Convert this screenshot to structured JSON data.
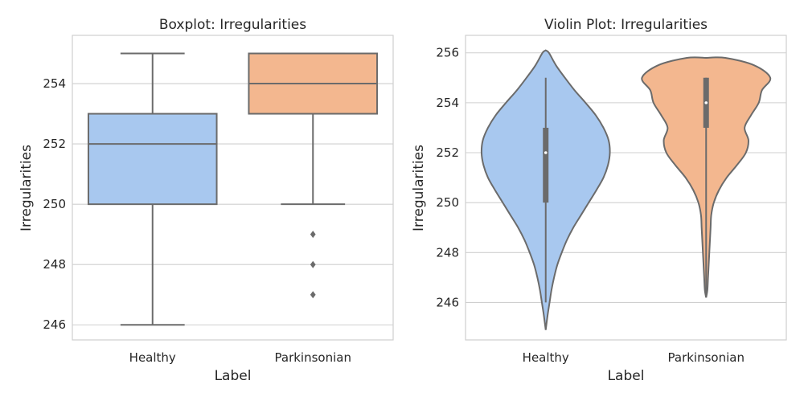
{
  "chart_data": [
    {
      "type": "box",
      "title": "Boxplot: Irregularities",
      "xlabel": "Label",
      "ylabel": "Irregularities",
      "categories": [
        "Healthy",
        "Parkinsonian"
      ],
      "ylim": [
        245.5,
        255.6
      ],
      "yticks": [
        246,
        248,
        250,
        252,
        254
      ],
      "grid": "horizontal",
      "boxes": [
        {
          "category": "Healthy",
          "color": "#a8c8ef",
          "whisker_low": 246,
          "q1": 250,
          "median": 252,
          "q3": 253,
          "whisker_high": 255,
          "outliers": []
        },
        {
          "category": "Parkinsonian",
          "color": "#f3b78f",
          "whisker_low": 250,
          "q1": 253,
          "median": 254,
          "q3": 255,
          "whisker_high": 255,
          "outliers": [
            249,
            248,
            247
          ]
        }
      ]
    },
    {
      "type": "violin",
      "title": "Violin Plot: Irregularities",
      "xlabel": "Label",
      "ylabel": "Irregularities",
      "categories": [
        "Healthy",
        "Parkinsonian"
      ],
      "ylim": [
        244.5,
        256.7
      ],
      "yticks": [
        246,
        248,
        250,
        252,
        254,
        256
      ],
      "grid": "horizontal",
      "violins": [
        {
          "category": "Healthy",
          "color": "#a8c8ef",
          "min": 246,
          "q1": 250,
          "median": 252,
          "q3": 253,
          "max": 255,
          "density": [
            [
              244.9,
              0.0
            ],
            [
              245.5,
              0.03
            ],
            [
              246.0,
              0.06
            ],
            [
              246.5,
              0.09
            ],
            [
              247.0,
              0.13
            ],
            [
              247.5,
              0.18
            ],
            [
              248.0,
              0.25
            ],
            [
              248.5,
              0.33
            ],
            [
              249.0,
              0.43
            ],
            [
              249.5,
              0.55
            ],
            [
              250.0,
              0.67
            ],
            [
              250.5,
              0.79
            ],
            [
              251.0,
              0.9
            ],
            [
              251.5,
              0.97
            ],
            [
              252.0,
              1.0
            ],
            [
              252.5,
              0.98
            ],
            [
              253.0,
              0.9
            ],
            [
              253.5,
              0.78
            ],
            [
              254.0,
              0.62
            ],
            [
              254.5,
              0.45
            ],
            [
              255.0,
              0.3
            ],
            [
              255.5,
              0.16
            ],
            [
              256.0,
              0.05
            ],
            [
              256.1,
              0.0
            ]
          ]
        },
        {
          "category": "Parkinsonian",
          "color": "#f3b78f",
          "min": 246.2,
          "q1": 253,
          "median": 254,
          "q3": 255,
          "max": 255,
          "density": [
            [
              246.2,
              0.0
            ],
            [
              246.5,
              0.02
            ],
            [
              247.0,
              0.03
            ],
            [
              247.5,
              0.04
            ],
            [
              248.0,
              0.05
            ],
            [
              248.5,
              0.06
            ],
            [
              249.0,
              0.07
            ],
            [
              249.5,
              0.08
            ],
            [
              250.0,
              0.12
            ],
            [
              250.5,
              0.2
            ],
            [
              251.0,
              0.32
            ],
            [
              251.5,
              0.48
            ],
            [
              252.0,
              0.62
            ],
            [
              252.5,
              0.66
            ],
            [
              253.0,
              0.6
            ],
            [
              253.5,
              0.7
            ],
            [
              254.0,
              0.82
            ],
            [
              254.5,
              0.87
            ],
            [
              255.0,
              1.0
            ],
            [
              255.5,
              0.75
            ],
            [
              255.8,
              0.3
            ],
            [
              255.8,
              0.0
            ]
          ]
        }
      ]
    }
  ]
}
